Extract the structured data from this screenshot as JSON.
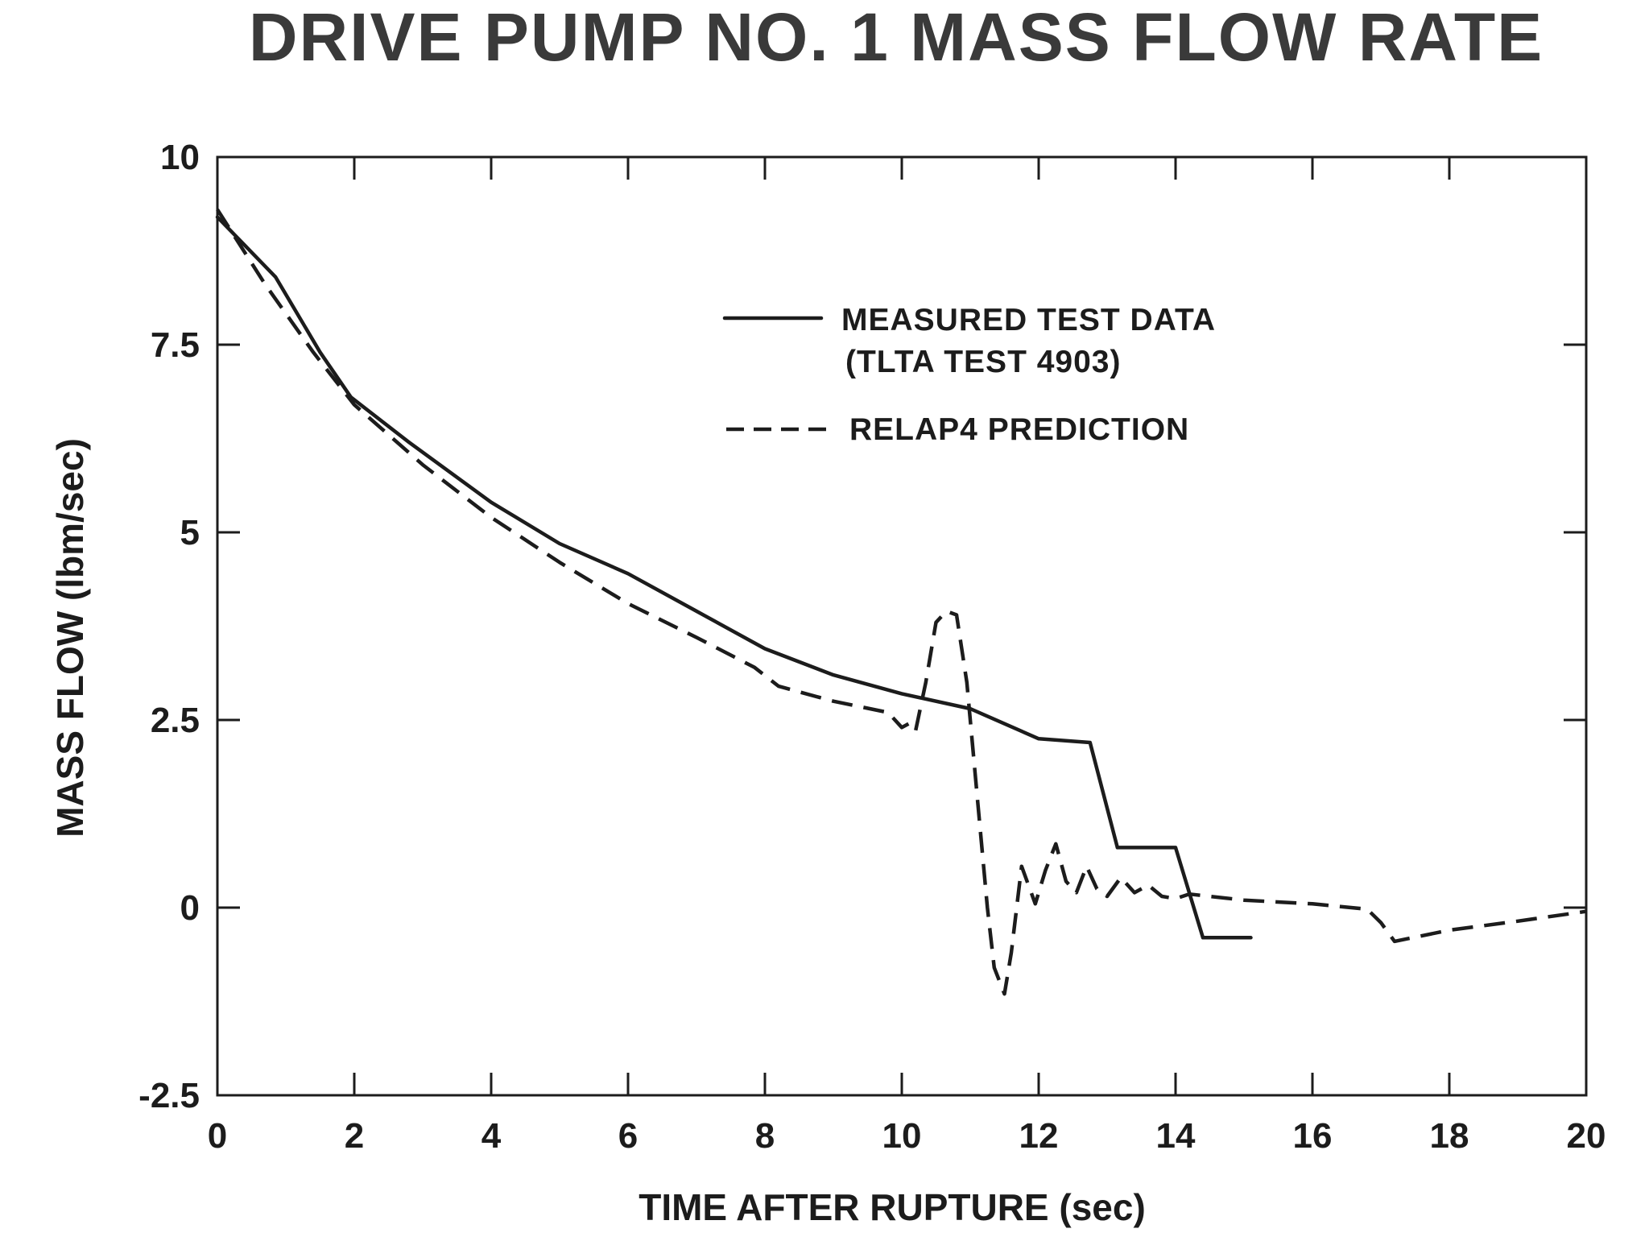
{
  "chart_data": {
    "type": "line",
    "title": "DRIVE PUMP NO. 1 MASS FLOW RATE",
    "xlabel": "TIME AFTER RUPTURE (sec)",
    "ylabel": "MASS FLOW (lbm/sec)",
    "xlim": [
      0,
      20
    ],
    "ylim": [
      -2.5,
      10
    ],
    "x_ticks": [
      0,
      2,
      4,
      6,
      8,
      10,
      12,
      14,
      16,
      18,
      20
    ],
    "x_tick_labels": [
      "0",
      "2",
      "4",
      "6",
      "8",
      "10",
      "12",
      "14",
      "16",
      "18",
      "20"
    ],
    "y_ticks": [
      -2.5,
      0,
      2.5,
      5,
      7.5,
      10
    ],
    "y_tick_labels": [
      "-2.5",
      "0",
      "2.5",
      "5",
      "7.5",
      "10"
    ],
    "grid": false,
    "legend_position": "upper-center",
    "series": [
      {
        "name": "MEASURED TEST DATA (TLTA TEST 4903)",
        "legend_lines": [
          "MEASURED TEST DATA",
          "(TLTA TEST 4903)"
        ],
        "style": "solid",
        "color": "#1c1c1c",
        "x": [
          0,
          0.85,
          1.5,
          1.95,
          2.8,
          4.0,
          5.0,
          6.0,
          7.0,
          8.0,
          9.0,
          10.0,
          11.0,
          12.0,
          12.75,
          13.15,
          14.0,
          14.4,
          15.1
        ],
        "y": [
          9.2,
          8.4,
          7.4,
          6.8,
          6.2,
          5.4,
          4.85,
          4.45,
          3.95,
          3.45,
          3.1,
          2.85,
          2.65,
          2.25,
          2.2,
          0.8,
          0.8,
          -0.4,
          -0.4
        ]
      },
      {
        "name": "RELAP4 PREDICTION",
        "legend_lines": [
          "RELAP4 PREDICTION"
        ],
        "style": "dashed",
        "color": "#1c1c1c",
        "x": [
          0,
          0.7,
          1.4,
          2.0,
          3.0,
          4.0,
          5.0,
          6.0,
          7.0,
          7.85,
          8.2,
          9.0,
          9.8,
          10.0,
          10.1,
          10.2,
          10.35,
          10.5,
          10.65,
          10.8,
          10.95,
          11.1,
          11.25,
          11.35,
          11.5,
          11.6,
          11.75,
          11.95,
          12.1,
          12.25,
          12.4,
          12.55,
          12.7,
          12.85,
          13.0,
          13.2,
          13.4,
          13.6,
          13.8,
          14.0,
          14.2,
          14.5,
          15.0,
          16.0,
          16.8,
          17.0,
          17.2,
          18.0,
          19.0,
          20.0
        ],
        "y": [
          9.3,
          8.3,
          7.4,
          6.7,
          5.9,
          5.2,
          4.6,
          4.05,
          3.6,
          3.2,
          2.95,
          2.75,
          2.6,
          2.4,
          2.45,
          2.35,
          3.0,
          3.8,
          3.95,
          3.9,
          3.0,
          1.5,
          0.0,
          -0.8,
          -1.15,
          -0.6,
          0.55,
          0.05,
          0.5,
          0.85,
          0.35,
          0.2,
          0.55,
          0.25,
          0.15,
          0.4,
          0.2,
          0.3,
          0.15,
          0.12,
          0.18,
          0.15,
          0.1,
          0.05,
          -0.02,
          -0.2,
          -0.45,
          -0.3,
          -0.18,
          -0.05
        ]
      }
    ]
  }
}
